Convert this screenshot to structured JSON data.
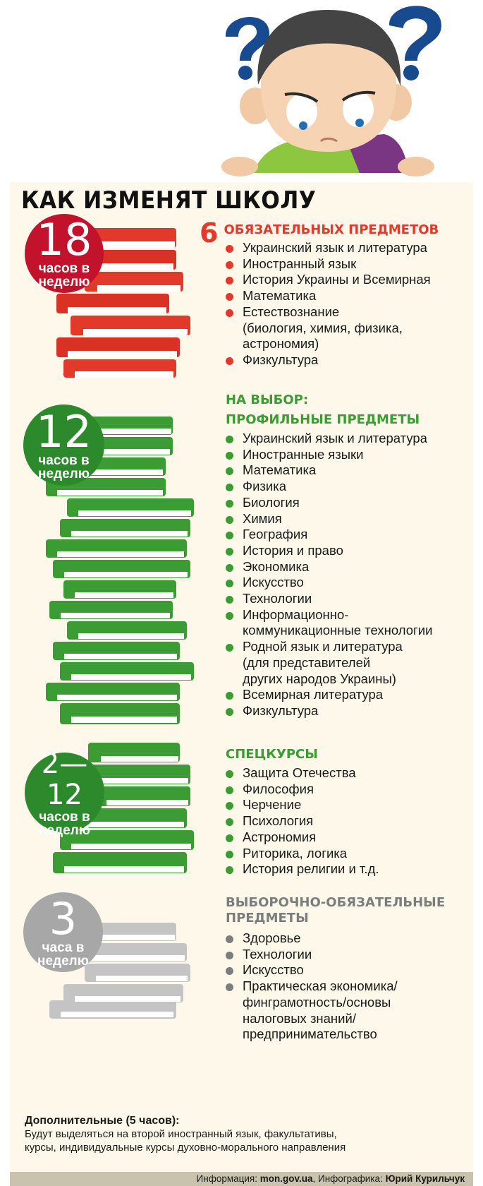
{
  "headline": "КАК ИЗМЕНЯТ ШКОЛУ",
  "colors": {
    "red": "#e2392a",
    "red_badge": "#c3122b",
    "green": "#3a9c33",
    "green_badge": "#2d8a2c",
    "gray": "#a7a7a7",
    "panel": "#fdf8ea",
    "blue": "#184a8f"
  },
  "sections": {
    "mandatory": {
      "badge_number": "18",
      "badge_label": "часов в\nнеделю",
      "count": "6",
      "heading": "ОБЯЗАТЕЛЬНЫХ ПРЕДМЕТОВ",
      "items": [
        "Украинский язык и литература",
        "Иностранный язык",
        "История Украины и Всемирная",
        "Математика",
        "Естествознание\n(биология, химия, физика,\nастрономия)",
        "Физкультура"
      ]
    },
    "profile": {
      "badge_number": "12",
      "badge_label": "часов в\nнеделю",
      "pre_heading": "НА ВЫБОР:",
      "heading": "ПРОФИЛЬНЫЕ ПРЕДМЕТЫ",
      "items": [
        "Украинский язык и литература",
        "Иностранные языки",
        "Математика",
        "Физика",
        "Биология",
        "Химия",
        "География",
        "История и право",
        "Экономика",
        "Искусство",
        "Технологии",
        "Информационно-\nкоммуникационные технологии",
        "Родной язык и литература\n(для представителей\nдругих народов Украины)",
        "Всемирная литература",
        "Физкультура"
      ]
    },
    "special": {
      "badge_number": "2—12",
      "badge_label": "часов в\nнеделю",
      "heading": "СПЕЦКУРСЫ",
      "items": [
        "Защита Отечества",
        "Философия",
        "Черчение",
        "Психология",
        "Астрономия",
        "Риторика, логика",
        "История религии и т.д."
      ]
    },
    "selective": {
      "badge_number": "3",
      "badge_label": "часа в\nнеделю",
      "heading": "ВЫБОРОЧНО-ОБЯЗАТЕЛЬНЫЕ\nПРЕДМЕТЫ",
      "items": [
        "Здоровье",
        "Технологии",
        "Искусство",
        "Практическая экономика/\nфинграмотность/основы\nналоговых знаний/\nпредпринимательство"
      ]
    }
  },
  "footer": {
    "title": "Дополнительные (5 часов):",
    "text": "Будут выделяться на второй иностранный язык, факультативы,\nкурсы, индивидуальные курсы духовно-морального направления"
  },
  "credits": {
    "info_label": "Информация: ",
    "info_source": "mon.gov.ua",
    "sep": ", ",
    "graphics_label": "Инфографика: ",
    "graphics_author": "Юрий Курильчук"
  }
}
